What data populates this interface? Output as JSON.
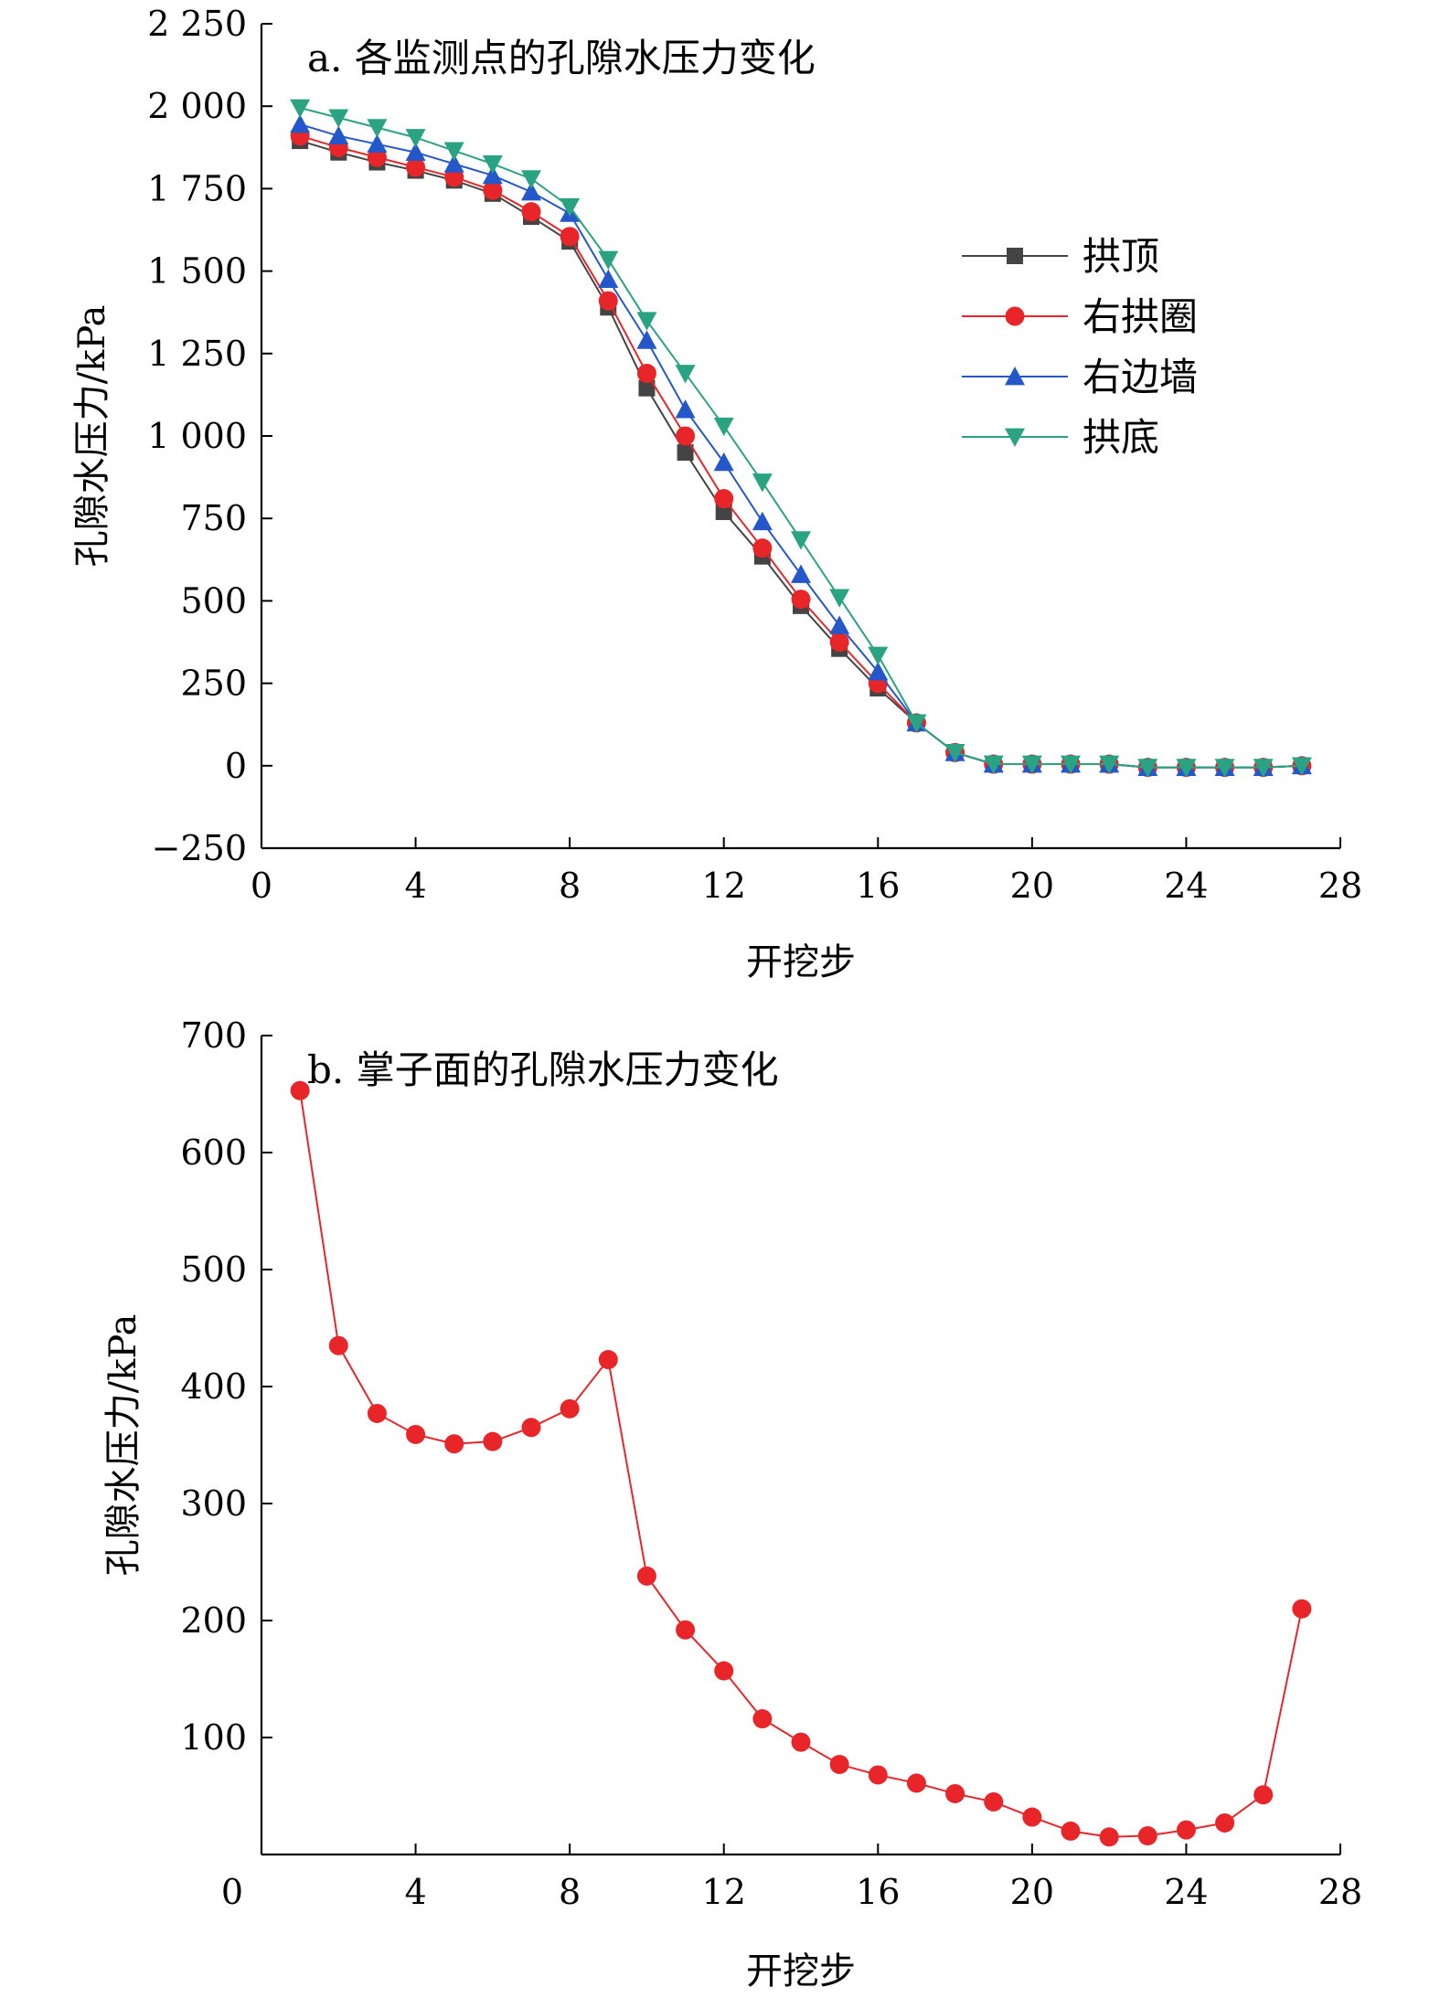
{
  "chart_data": [
    {
      "type": "line",
      "title": "a. 各监测点的孔隙水压力变化",
      "xlabel": "开挖步",
      "ylabel": "孔隙水压力/kPa",
      "xlim": [
        0,
        28
      ],
      "ylim": [
        -250,
        2250
      ],
      "x_ticks": [
        "0",
        "4",
        "8",
        "12",
        "16",
        "20",
        "24",
        "28"
      ],
      "y_ticks": [
        "−250",
        "0",
        "250",
        "500",
        "750",
        "1 000",
        "1 250",
        "1 500",
        "1 750",
        "2 000",
        "2 250"
      ],
      "x": [
        1,
        2,
        3,
        4,
        5,
        6,
        7,
        8,
        9,
        10,
        11,
        12,
        13,
        14,
        15,
        16,
        17,
        18,
        19,
        20,
        21,
        22,
        23,
        24,
        25,
        26,
        27
      ],
      "grid": false,
      "legend_position": "right-center",
      "series": [
        {
          "name": "拱顶",
          "color": "#444444",
          "marker": "square",
          "values": [
            1895,
            1860,
            1830,
            1805,
            1775,
            1735,
            1665,
            1590,
            1390,
            1145,
            950,
            770,
            635,
            485,
            355,
            235,
            130,
            40,
            5,
            5,
            5,
            5,
            -5,
            -5,
            -5,
            -5,
            0
          ]
        },
        {
          "name": "右拱圈",
          "color": "#e8262a",
          "marker": "circle",
          "values": [
            1910,
            1875,
            1845,
            1815,
            1785,
            1745,
            1680,
            1605,
            1410,
            1190,
            1000,
            810,
            660,
            505,
            375,
            250,
            130,
            40,
            5,
            5,
            5,
            5,
            -5,
            -5,
            -5,
            -5,
            0
          ]
        },
        {
          "name": "右边墙",
          "color": "#2457c9",
          "marker": "triangle-up",
          "values": [
            1945,
            1910,
            1885,
            1860,
            1825,
            1790,
            1740,
            1675,
            1475,
            1290,
            1080,
            920,
            740,
            580,
            425,
            285,
            130,
            40,
            5,
            5,
            5,
            5,
            -5,
            -5,
            -5,
            -5,
            0
          ]
        },
        {
          "name": "拱底",
          "color": "#2aa383",
          "marker": "triangle-down",
          "values": [
            1995,
            1965,
            1935,
            1905,
            1865,
            1825,
            1780,
            1695,
            1535,
            1350,
            1190,
            1030,
            860,
            685,
            510,
            335,
            130,
            40,
            5,
            5,
            5,
            5,
            -5,
            -5,
            -5,
            -5,
            0
          ]
        }
      ]
    },
    {
      "type": "line",
      "title": "b. 掌子面的孔隙水压力变化",
      "xlabel": "开挖步",
      "ylabel": "孔隙水压力/kPa",
      "xlim": [
        0,
        28
      ],
      "ylim": [
        0,
        700
      ],
      "x_ticks": [
        "0",
        "4",
        "8",
        "12",
        "16",
        "20",
        "24",
        "28"
      ],
      "y_ticks": [
        "100",
        "200",
        "300",
        "400",
        "500",
        "600",
        "700"
      ],
      "grid": false,
      "series": [
        {
          "color": "#e8262a",
          "marker": "circle",
          "x": [
            1,
            2,
            3,
            4,
            5,
            6,
            7,
            8,
            9,
            10,
            11,
            12,
            13,
            14,
            15,
            16,
            17,
            18,
            19,
            20,
            21,
            22,
            23,
            24,
            25,
            26,
            27
          ],
          "values": [
            653,
            435,
            377,
            359,
            351,
            353,
            365,
            381,
            423,
            238,
            192,
            157,
            116,
            96,
            77,
            68,
            61,
            52,
            45,
            32,
            20,
            15,
            16,
            21,
            27,
            51,
            210
          ]
        }
      ]
    }
  ]
}
